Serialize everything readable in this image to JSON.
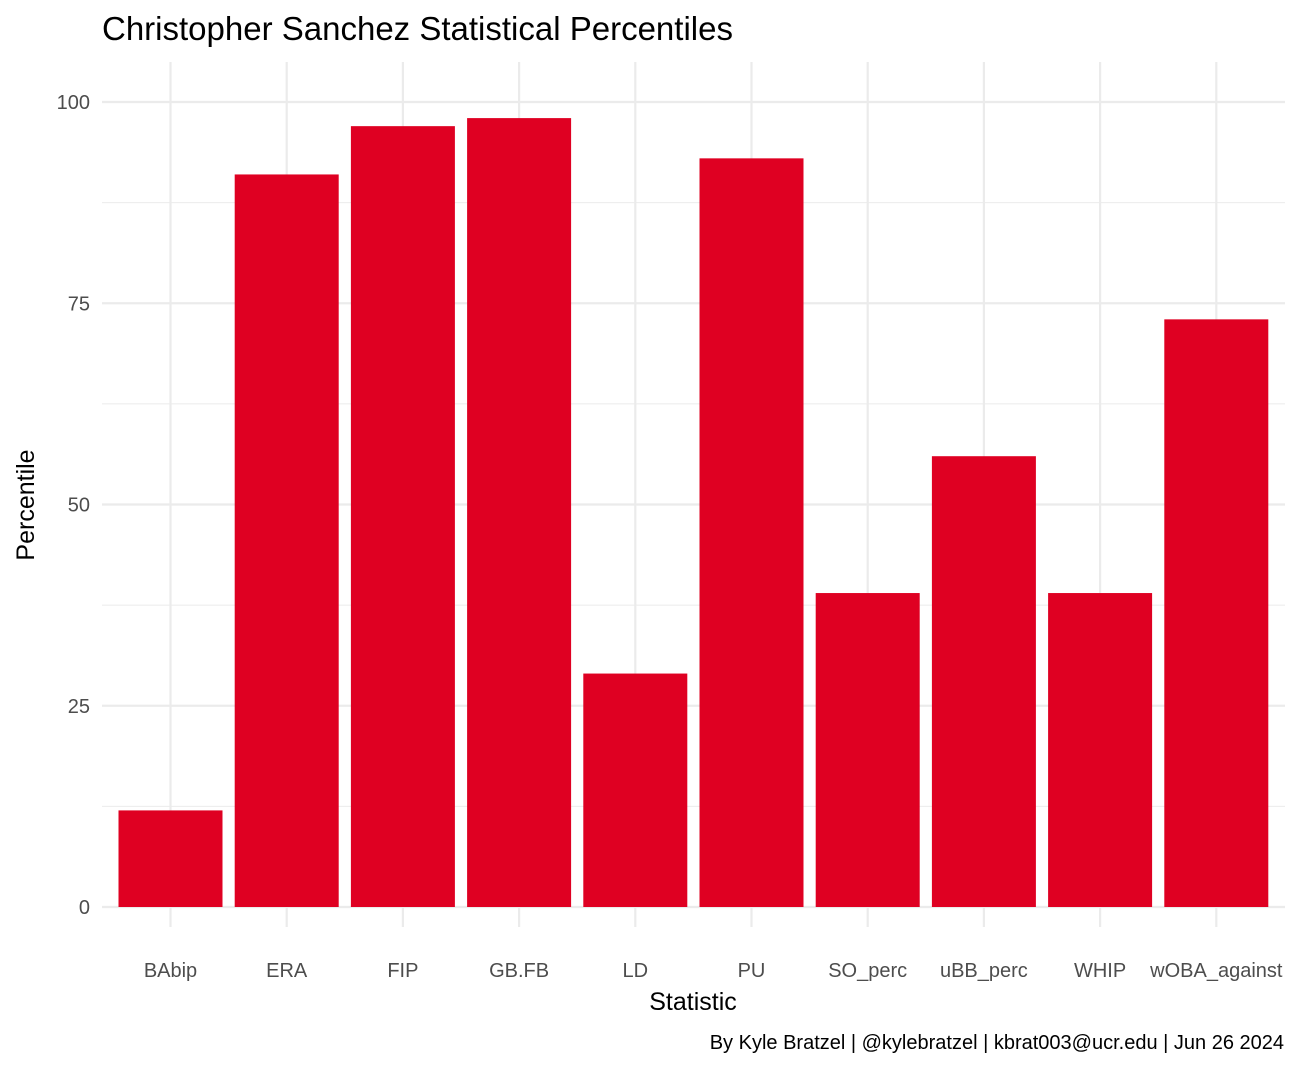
{
  "chart_data": {
    "type": "bar",
    "title": "Christopher Sanchez Statistical Percentiles",
    "xlabel": "Statistic",
    "ylabel": "Percentile",
    "caption": "By Kyle Bratzel | @kylebratzel | kbrat003@ucr.edu | Jun 26 2024",
    "categories": [
      "BAbip",
      "ERA",
      "FIP",
      "GB.FB",
      "LD",
      "PU",
      "SO_perc",
      "uBB_perc",
      "WHIP",
      "wOBA_against"
    ],
    "values": [
      12,
      91,
      97,
      98,
      29,
      93,
      39,
      56,
      39,
      73
    ],
    "ylim": [
      0,
      100
    ],
    "yticks": [
      0,
      25,
      50,
      75,
      100
    ],
    "bar_color": "#DF0022",
    "grid": true,
    "legend": "none"
  }
}
